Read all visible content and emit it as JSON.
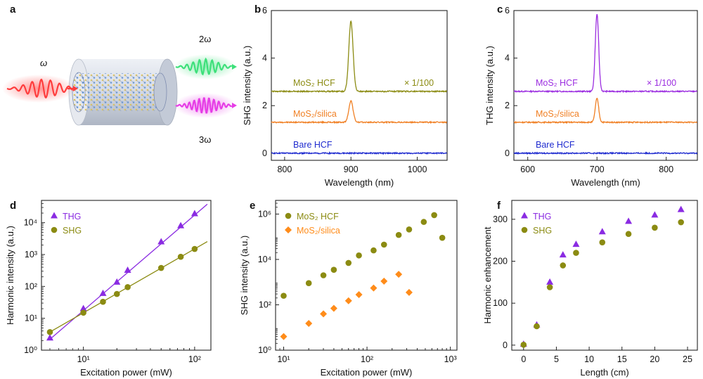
{
  "panel_labels": {
    "a": "a",
    "b": "b",
    "c": "c",
    "d": "d",
    "e": "e",
    "f": "f"
  },
  "schematic": {
    "in_label": "ω",
    "out2_label": "2ω",
    "out3_label": "3ω",
    "colors": {
      "in": "#ff3c3c",
      "out2": "#3de07a",
      "out3": "#e63ce6"
    }
  },
  "chart_data": [
    {
      "id": "b",
      "type": "line",
      "xlabel": "Wavelength (nm)",
      "ylabel": "SHG intensity (a.u.)",
      "xlim": [
        780,
        1045
      ],
      "ylim": [
        -0.3,
        6.0
      ],
      "xticks": [
        800,
        900,
        1000
      ],
      "yticks": [
        0,
        2,
        4,
        6
      ],
      "peak_center": 900,
      "series": [
        {
          "name": "MoS₂ HCF",
          "color": "#8b8b12",
          "baseline": 2.6,
          "peak": 5.55,
          "width": 4.5,
          "note": "× 1/100"
        },
        {
          "name": "MoS₂/silica",
          "color": "#f07f23",
          "baseline": 1.3,
          "peak": 2.2,
          "width": 4.5
        },
        {
          "name": "Bare HCF",
          "color": "#1f2bcf",
          "baseline": 0.0,
          "peak": 0.0,
          "width": 4.5
        }
      ]
    },
    {
      "id": "c",
      "type": "line",
      "xlabel": "Wavelength (nm)",
      "ylabel": "THG intensity (a.u.)",
      "xlim": [
        580,
        845
      ],
      "ylim": [
        -0.3,
        6.0
      ],
      "xticks": [
        600,
        700,
        800
      ],
      "yticks": [
        0,
        2,
        4,
        6
      ],
      "peak_center": 700,
      "series": [
        {
          "name": "MoS₂ HCF",
          "color": "#9b2de0",
          "baseline": 2.6,
          "peak": 5.85,
          "width": 3.5,
          "note": "× 1/100"
        },
        {
          "name": "MoS₂/silica",
          "color": "#f07f23",
          "baseline": 1.3,
          "peak": 2.3,
          "width": 3.5
        },
        {
          "name": "Bare HCF",
          "color": "#1f2bcf",
          "baseline": 0.0,
          "peak": 0.0,
          "width": 3.5
        }
      ]
    },
    {
      "id": "d",
      "type": "scatter",
      "xlabel": "Excitation power (mW)",
      "ylabel": "Harmonic intensity (a.u.)",
      "xscale": "log",
      "yscale": "log",
      "xlim": [
        4.2,
        140
      ],
      "ylim": [
        1,
        50000
      ],
      "xticks": [
        10,
        100
      ],
      "yticks": [
        1,
        10,
        100,
        1000,
        10000
      ],
      "legend": "top-left",
      "series": [
        {
          "name": "THG",
          "marker": "triangle",
          "color": "#8a2be2",
          "x": [
            5,
            10,
            15,
            20,
            25,
            50,
            75,
            100
          ],
          "y": [
            2.4,
            20,
            60,
            135,
            320,
            2500,
            8000,
            19000
          ],
          "fit": {
            "x": [
              5,
              130
            ],
            "y": [
              2.2,
              38000
            ]
          }
        },
        {
          "name": "SHG",
          "marker": "circle",
          "color": "#8b8b12",
          "x": [
            5,
            10,
            15,
            20,
            25,
            50,
            75,
            100
          ],
          "y": [
            3.7,
            15,
            33,
            58,
            95,
            380,
            850,
            1500
          ],
          "fit": {
            "x": [
              5,
              130
            ],
            "y": [
              3.7,
              2550
            ]
          }
        }
      ]
    },
    {
      "id": "e",
      "type": "scatter",
      "xlabel": "Excitation power (mW)",
      "ylabel": "SHG intensity (a.u.)",
      "xscale": "log",
      "yscale": "log",
      "xlim": [
        8,
        1200
      ],
      "ylim": [
        1,
        4000000
      ],
      "xticks": [
        10,
        100,
        1000
      ],
      "yticks": [
        1,
        100,
        10000,
        1000000
      ],
      "legend": "top-left",
      "series": [
        {
          "name": "MoS₂ HCF",
          "marker": "circle",
          "color": "#8b8b12",
          "x": [
            10,
            20,
            30,
            40,
            60,
            80,
            120,
            160,
            240,
            320,
            480,
            640,
            800
          ],
          "y": [
            250,
            900,
            2000,
            3500,
            7000,
            15000,
            25000,
            45000,
            120000,
            210000,
            450000,
            900000,
            90000
          ]
        },
        {
          "name": "MoS₂/silica",
          "marker": "diamond",
          "color": "#ff8c1a",
          "x": [
            10,
            20,
            30,
            40,
            60,
            80,
            120,
            160,
            240,
            320
          ],
          "y": [
            4,
            15,
            40,
            70,
            150,
            280,
            550,
            1100,
            2200,
            350
          ]
        }
      ]
    },
    {
      "id": "f",
      "type": "scatter",
      "xlabel": "Length (cm)",
      "ylabel": "Harmonic enhancement",
      "xlim": [
        -1.8,
        26.5
      ],
      "ylim": [
        -12,
        345
      ],
      "xticks": [
        0,
        5,
        10,
        15,
        20,
        25
      ],
      "yticks": [
        0,
        100,
        200,
        300
      ],
      "legend": "top-left",
      "series": [
        {
          "name": "THG",
          "marker": "triangle",
          "color": "#8a2be2",
          "x": [
            0,
            2,
            4,
            6,
            8,
            12,
            16,
            20,
            24
          ],
          "y": [
            2,
            48,
            150,
            215,
            240,
            270,
            295,
            310,
            323
          ]
        },
        {
          "name": "SHG",
          "marker": "circle",
          "color": "#8b8b12",
          "x": [
            0,
            2,
            4,
            6,
            8,
            12,
            16,
            20,
            24
          ],
          "y": [
            1,
            45,
            138,
            190,
            220,
            245,
            265,
            280,
            293
          ]
        }
      ]
    }
  ]
}
